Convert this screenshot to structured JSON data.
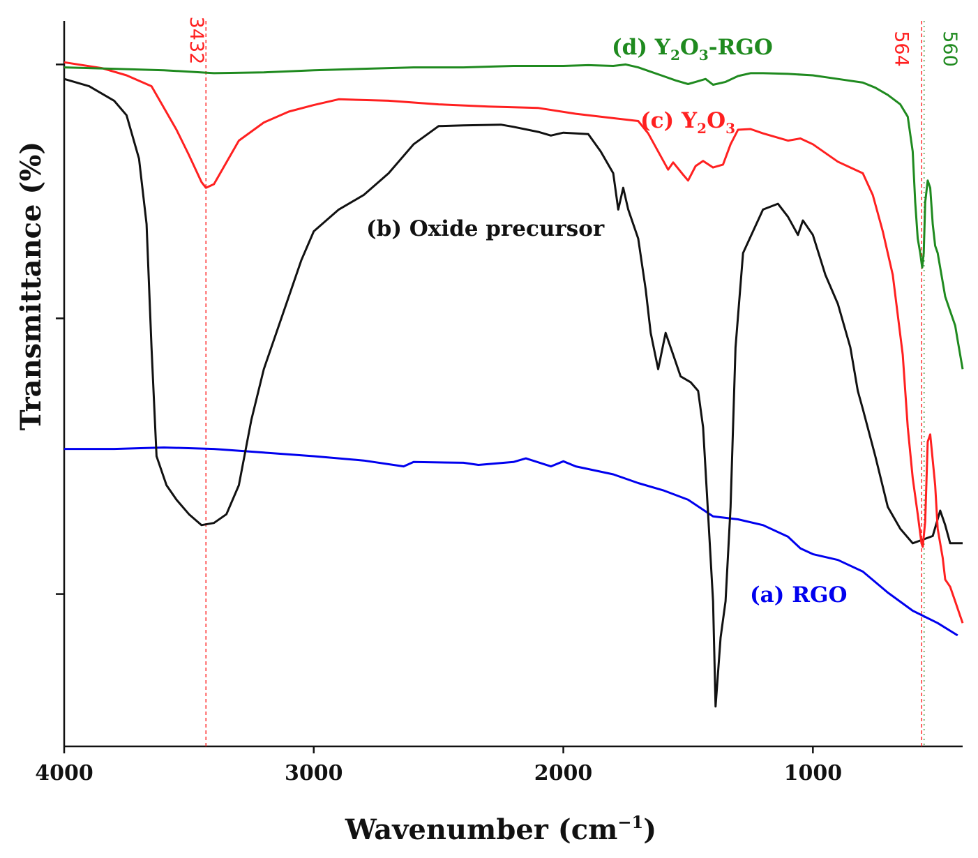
{
  "chart_data": {
    "type": "line",
    "title": "",
    "xlabel_main": "Wavenumber (cm",
    "xlabel_sup": "−1",
    "xlabel_close": ")",
    "ylabel": "Transmittance (%)",
    "xlim": [
      4000,
      400
    ],
    "ylim": [
      0,
      100
    ],
    "x_ticks": [
      4000,
      3000,
      2000,
      1000
    ],
    "x_tick_labels": [
      "4000",
      "3000",
      "2000",
      "1000"
    ],
    "y_ticks": [
      94,
      59,
      21
    ],
    "reference_lines": [
      {
        "label": "3432",
        "x": 3432,
        "color": "#ff2020"
      },
      {
        "label": "564",
        "x": 564,
        "color": "#ff2020"
      },
      {
        "label": "560",
        "x": 560,
        "color": "#1f8a1f"
      }
    ],
    "series": [
      {
        "id": "a",
        "name": "(a) RGO",
        "color": "#0000ee",
        "label_parts": [
          "(a) RGO"
        ],
        "points": [
          [
            4000,
            41
          ],
          [
            3800,
            41
          ],
          [
            3600,
            41.2
          ],
          [
            3400,
            41
          ],
          [
            3200,
            40.5
          ],
          [
            3000,
            40
          ],
          [
            2800,
            39.4
          ],
          [
            2640,
            38.6
          ],
          [
            2600,
            39.2
          ],
          [
            2400,
            39.1
          ],
          [
            2340,
            38.8
          ],
          [
            2200,
            39.2
          ],
          [
            2150,
            39.7
          ],
          [
            2050,
            38.6
          ],
          [
            2000,
            39.3
          ],
          [
            1950,
            38.6
          ],
          [
            1800,
            37.5
          ],
          [
            1700,
            36.3
          ],
          [
            1600,
            35.3
          ],
          [
            1500,
            34
          ],
          [
            1400,
            31.7
          ],
          [
            1300,
            31.3
          ],
          [
            1200,
            30.5
          ],
          [
            1100,
            28.9
          ],
          [
            1050,
            27.3
          ],
          [
            1000,
            26.5
          ],
          [
            900,
            25.7
          ],
          [
            800,
            24.1
          ],
          [
            700,
            21.2
          ],
          [
            600,
            18.7
          ],
          [
            500,
            17
          ],
          [
            420,
            15.3
          ]
        ]
      },
      {
        "id": "b",
        "name": "(b) Oxide precursor",
        "color": "#111111",
        "label_parts": [
          "(b) Oxide precursor"
        ],
        "points": [
          [
            4000,
            92
          ],
          [
            3900,
            91
          ],
          [
            3800,
            89
          ],
          [
            3750,
            87
          ],
          [
            3700,
            81
          ],
          [
            3670,
            72
          ],
          [
            3650,
            55
          ],
          [
            3630,
            40
          ],
          [
            3590,
            36
          ],
          [
            3550,
            34
          ],
          [
            3500,
            32
          ],
          [
            3450,
            30.5
          ],
          [
            3400,
            30.8
          ],
          [
            3350,
            32
          ],
          [
            3300,
            36
          ],
          [
            3250,
            45
          ],
          [
            3200,
            52
          ],
          [
            3150,
            57
          ],
          [
            3100,
            62
          ],
          [
            3050,
            67
          ],
          [
            3000,
            71
          ],
          [
            2900,
            74
          ],
          [
            2800,
            76
          ],
          [
            2700,
            79
          ],
          [
            2600,
            83
          ],
          [
            2500,
            85.5
          ],
          [
            2400,
            85.6
          ],
          [
            2250,
            85.7
          ],
          [
            2200,
            85.4
          ],
          [
            2100,
            84.7
          ],
          [
            2050,
            84.2
          ],
          [
            2000,
            84.6
          ],
          [
            1900,
            84.4
          ],
          [
            1850,
            82
          ],
          [
            1800,
            79
          ],
          [
            1780,
            74
          ],
          [
            1760,
            77
          ],
          [
            1740,
            74
          ],
          [
            1700,
            70
          ],
          [
            1670,
            63
          ],
          [
            1650,
            57
          ],
          [
            1620,
            52
          ],
          [
            1590,
            57
          ],
          [
            1560,
            54
          ],
          [
            1530,
            51
          ],
          [
            1490,
            50.2
          ],
          [
            1460,
            49
          ],
          [
            1440,
            44
          ],
          [
            1420,
            32
          ],
          [
            1400,
            20
          ],
          [
            1390,
            5.5
          ],
          [
            1370,
            15
          ],
          [
            1350,
            20
          ],
          [
            1330,
            33
          ],
          [
            1310,
            55
          ],
          [
            1280,
            68
          ],
          [
            1200,
            74
          ],
          [
            1140,
            74.8
          ],
          [
            1100,
            73
          ],
          [
            1060,
            70.5
          ],
          [
            1040,
            72.5
          ],
          [
            1000,
            70.5
          ],
          [
            950,
            65
          ],
          [
            900,
            61
          ],
          [
            850,
            55
          ],
          [
            820,
            49
          ],
          [
            800,
            46.5
          ],
          [
            750,
            40
          ],
          [
            700,
            33
          ],
          [
            650,
            30
          ],
          [
            600,
            28
          ],
          [
            560,
            28.5
          ],
          [
            520,
            29
          ],
          [
            490,
            32.5
          ],
          [
            470,
            30.5
          ],
          [
            450,
            28
          ],
          [
            400,
            28
          ]
        ]
      },
      {
        "id": "c",
        "name": "(c) Y2O3",
        "color": "#ff2020",
        "label_parts": [
          "(c) Y",
          "2",
          "O",
          "3"
        ],
        "points": [
          [
            4000,
            94.3
          ],
          [
            3850,
            93.5
          ],
          [
            3750,
            92.5
          ],
          [
            3650,
            91
          ],
          [
            3600,
            88
          ],
          [
            3550,
            85
          ],
          [
            3500,
            81.5
          ],
          [
            3450,
            77.8
          ],
          [
            3432,
            77
          ],
          [
            3400,
            77.5
          ],
          [
            3350,
            80.5
          ],
          [
            3300,
            83.5
          ],
          [
            3200,
            86
          ],
          [
            3100,
            87.5
          ],
          [
            3000,
            88.4
          ],
          [
            2900,
            89.2
          ],
          [
            2700,
            89
          ],
          [
            2500,
            88.5
          ],
          [
            2300,
            88.2
          ],
          [
            2100,
            88
          ],
          [
            1950,
            87.2
          ],
          [
            1800,
            86.6
          ],
          [
            1700,
            86.2
          ],
          [
            1660,
            84.5
          ],
          [
            1620,
            82
          ],
          [
            1580,
            79.5
          ],
          [
            1560,
            80.5
          ],
          [
            1520,
            78.8
          ],
          [
            1500,
            78
          ],
          [
            1470,
            80
          ],
          [
            1440,
            80.7
          ],
          [
            1400,
            79.8
          ],
          [
            1360,
            80.2
          ],
          [
            1330,
            83
          ],
          [
            1300,
            85
          ],
          [
            1250,
            85.1
          ],
          [
            1200,
            84.5
          ],
          [
            1100,
            83.5
          ],
          [
            1050,
            83.8
          ],
          [
            1000,
            83
          ],
          [
            900,
            80.6
          ],
          [
            850,
            79.8
          ],
          [
            800,
            79
          ],
          [
            760,
            76
          ],
          [
            720,
            71
          ],
          [
            680,
            65
          ],
          [
            640,
            54
          ],
          [
            620,
            44
          ],
          [
            600,
            37
          ],
          [
            580,
            32
          ],
          [
            565,
            28
          ],
          [
            560,
            27.5
          ],
          [
            550,
            31
          ],
          [
            540,
            42
          ],
          [
            530,
            43
          ],
          [
            510,
            36
          ],
          [
            500,
            30
          ],
          [
            480,
            26
          ],
          [
            470,
            23
          ],
          [
            450,
            22
          ],
          [
            430,
            20
          ],
          [
            410,
            18
          ],
          [
            400,
            17
          ]
        ]
      },
      {
        "id": "d",
        "name": "(d) Y2O3-RGO",
        "color": "#1f8a1f",
        "label_parts": [
          "(d) Y",
          "2",
          "O",
          "3",
          "-RGO"
        ],
        "points": [
          [
            4000,
            93.6
          ],
          [
            3800,
            93.4
          ],
          [
            3600,
            93.2
          ],
          [
            3400,
            92.8
          ],
          [
            3200,
            92.9
          ],
          [
            3000,
            93.2
          ],
          [
            2800,
            93.4
          ],
          [
            2600,
            93.6
          ],
          [
            2400,
            93.6
          ],
          [
            2200,
            93.8
          ],
          [
            2000,
            93.8
          ],
          [
            1900,
            93.9
          ],
          [
            1800,
            93.8
          ],
          [
            1750,
            94
          ],
          [
            1700,
            93.6
          ],
          [
            1650,
            93
          ],
          [
            1600,
            92.4
          ],
          [
            1550,
            91.8
          ],
          [
            1500,
            91.3
          ],
          [
            1470,
            91.6
          ],
          [
            1430,
            92
          ],
          [
            1400,
            91.2
          ],
          [
            1350,
            91.6
          ],
          [
            1300,
            92.4
          ],
          [
            1250,
            92.8
          ],
          [
            1200,
            92.8
          ],
          [
            1100,
            92.7
          ],
          [
            1000,
            92.5
          ],
          [
            900,
            92
          ],
          [
            800,
            91.5
          ],
          [
            750,
            90.8
          ],
          [
            700,
            89.8
          ],
          [
            650,
            88.5
          ],
          [
            620,
            86.8
          ],
          [
            600,
            82
          ],
          [
            590,
            75
          ],
          [
            580,
            70
          ],
          [
            570,
            68
          ],
          [
            562,
            66
          ],
          [
            556,
            68
          ],
          [
            550,
            75
          ],
          [
            540,
            78
          ],
          [
            530,
            77
          ],
          [
            520,
            72
          ],
          [
            510,
            69
          ],
          [
            500,
            68
          ],
          [
            480,
            64
          ],
          [
            470,
            62
          ],
          [
            450,
            60
          ],
          [
            430,
            58
          ],
          [
            420,
            56
          ],
          [
            410,
            54
          ],
          [
            400,
            52
          ]
        ]
      }
    ]
  }
}
